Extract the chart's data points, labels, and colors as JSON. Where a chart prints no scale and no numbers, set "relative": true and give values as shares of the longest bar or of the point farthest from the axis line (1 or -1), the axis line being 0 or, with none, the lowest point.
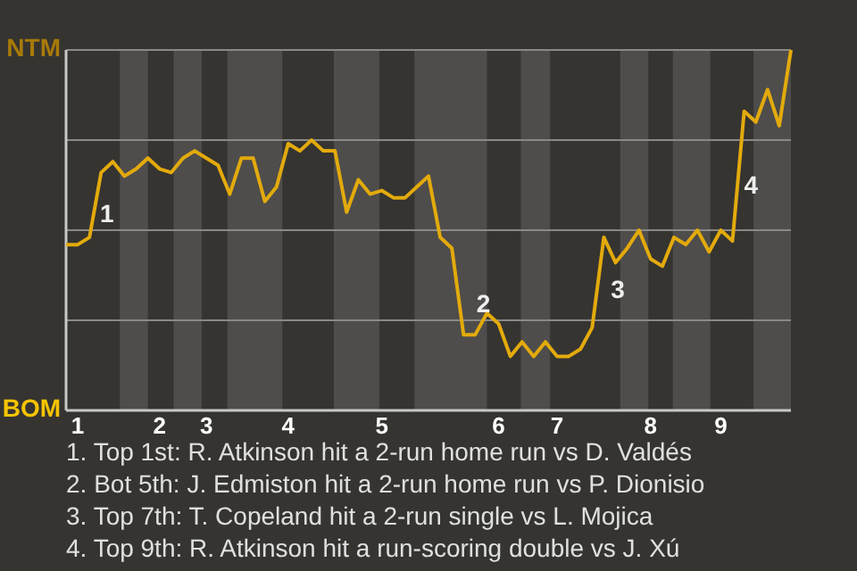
{
  "chart_data": {
    "type": "line",
    "relative": true,
    "categories": [
      null,
      "1",
      null,
      null,
      null,
      null,
      null,
      null,
      "2",
      null,
      null,
      null,
      "3",
      null,
      null,
      null,
      null,
      null,
      null,
      "4",
      null,
      null,
      null,
      null,
      null,
      null,
      null,
      "5",
      null,
      null,
      null,
      null,
      null,
      null,
      null,
      null,
      null,
      "6",
      null,
      null,
      null,
      null,
      "7",
      null,
      null,
      null,
      null,
      null,
      null,
      null,
      "8",
      null,
      null,
      null,
      null,
      null,
      "9",
      null,
      null,
      null,
      null,
      null,
      null
    ],
    "marker": "none",
    "line_style": "solid",
    "ref_lines": [
      {
        "axis": "y",
        "value": 0.25,
        "color": "#8a8987"
      },
      {
        "axis": "y",
        "value": 0.5,
        "color": "#8a8987"
      },
      {
        "axis": "y",
        "value": 0.75,
        "color": "#8a8987"
      },
      {
        "axis": "y",
        "value": 1,
        "color": "#8a8987"
      }
    ],
    "series": [
      {
        "color": "#e3aa0c",
        "values": [
          0.46,
          0.46,
          0.48,
          0.66,
          0.69,
          0.65,
          0.67,
          0.7,
          0.67,
          0.66,
          0.7,
          0.72,
          0.7,
          0.68,
          0.6,
          0.7,
          0.7,
          0.58,
          0.62,
          0.74,
          0.72,
          0.75,
          0.72,
          0.72,
          0.55,
          0.64,
          0.6,
          0.61,
          0.59,
          0.59,
          0.62,
          0.65,
          0.48,
          0.45,
          0.21,
          0.21,
          0.27,
          0.24,
          0.15,
          0.19,
          0.15,
          0.19,
          0.15,
          0.15,
          0.17,
          0.23,
          0.48,
          0.41,
          0.45,
          0.5,
          0.42,
          0.4,
          0.48,
          0.46,
          0.5,
          0.44,
          0.5,
          0.47,
          0.83,
          0.8,
          0.89,
          0.79,
          1
        ]
      }
    ],
    "annotations": [
      "1",
      "2",
      "3",
      "4",
      "NTM",
      "BOM",
      "1. Top 1st: R. Atkinson hit a 2-run home run vs D. Valdés",
      "2. Bot 5th: J. Edmiston hit a 2-run home run vs P. Dionisio",
      "3. Top 7th: T. Copeland hit a 2-run single vs L. Mojica",
      "4. Top 9th: R. Atkinson hit a run-scoring double vs J. Xú"
    ]
  }
}
